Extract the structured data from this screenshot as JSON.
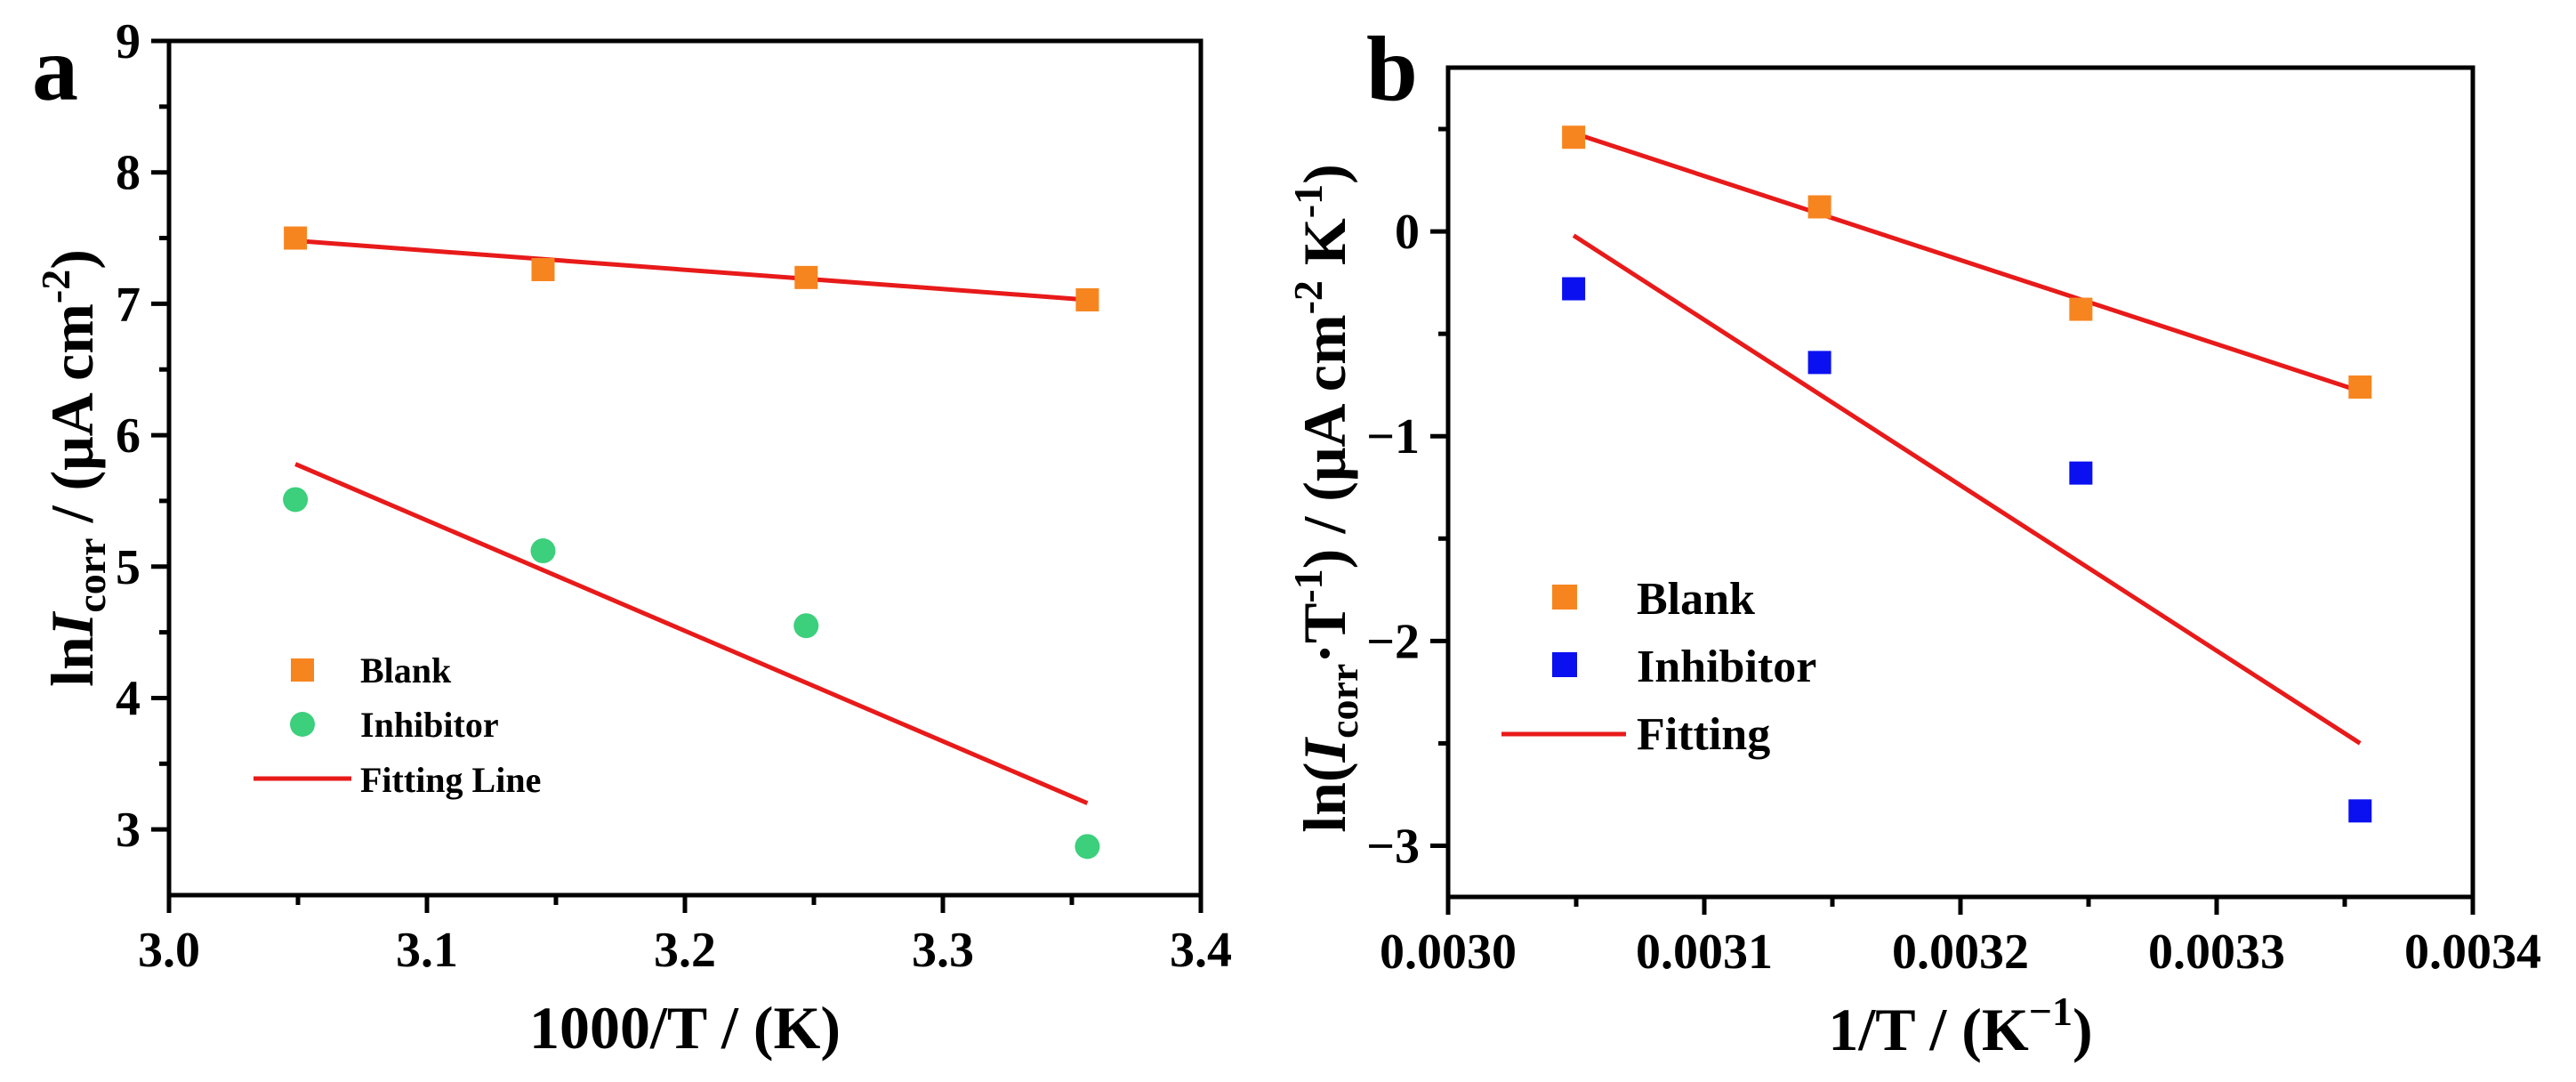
{
  "colors": {
    "blank": "#f7851f",
    "inhibitor_a": "#3ccf7c",
    "inhibitor_b": "#0b10f0",
    "fit": "#e81a1a",
    "axis": "#000000"
  },
  "chart_data": [
    {
      "panel": "a",
      "type": "scatter",
      "xlabel": "1000/T / (K)",
      "ylabel_parts": {
        "pre": "ln",
        "var": "I",
        "sub": "corr",
        "post": " / (μA cm",
        "sup": "-2",
        "end": ")"
      },
      "xlim": [
        3.0,
        3.4
      ],
      "ylim": [
        2.5,
        9.0
      ],
      "xticks": [
        "3.0",
        "3.1",
        "3.2",
        "3.3",
        "3.4"
      ],
      "yticks": [
        "3",
        "4",
        "5",
        "6",
        "7",
        "8",
        "9"
      ],
      "series": [
        {
          "name": "Blank",
          "marker": "square",
          "color": "#f7851f",
          "x": [
            3.049,
            3.145,
            3.247,
            3.356
          ],
          "y": [
            7.5,
            7.26,
            7.2,
            7.03
          ]
        },
        {
          "name": "Inhibitor",
          "marker": "circle",
          "color": "#3ccf7c",
          "x": [
            3.049,
            3.145,
            3.247,
            3.356
          ],
          "y": [
            5.51,
            5.12,
            4.55,
            2.87
          ]
        }
      ],
      "fits": [
        {
          "x": [
            3.049,
            3.356
          ],
          "y": [
            7.48,
            7.03
          ]
        },
        {
          "x": [
            3.049,
            3.356
          ],
          "y": [
            5.78,
            3.2
          ]
        }
      ],
      "legend": {
        "position": "lower-left",
        "items": [
          "Blank",
          "Inhibitor",
          "Fitting Line"
        ]
      }
    },
    {
      "panel": "b",
      "type": "scatter",
      "xlabel_parts": {
        "pre": "1/T / (K",
        "sup": "−1",
        "end": ")"
      },
      "ylabel_parts": {
        "pre": "ln(",
        "var": "I",
        "sub": "corr",
        "mid": "·T",
        "sup1": "-1",
        "post": ") / (μA cm",
        "sup2": "-2",
        "post2": " K",
        "sup3": "-1",
        "end": ")"
      },
      "xlim": [
        0.003,
        0.0034
      ],
      "ylim": [
        -3.25,
        0.8
      ],
      "xticks": [
        "0.0030",
        "0.0031",
        "0.0032",
        "0.0033",
        "0.0034"
      ],
      "yticks": [
        "−3",
        "−2",
        "−1",
        "0"
      ],
      "series": [
        {
          "name": "Blank",
          "marker": "square",
          "color": "#f7851f",
          "x": [
            0.003049,
            0.003145,
            0.003247,
            0.003356
          ],
          "y": [
            0.46,
            0.12,
            -0.38,
            -0.76
          ]
        },
        {
          "name": "Inhibitor",
          "marker": "square",
          "color": "#0b10f0",
          "x": [
            0.003049,
            0.003145,
            0.003247,
            0.003356
          ],
          "y": [
            -0.28,
            -0.64,
            -1.18,
            -2.83
          ]
        }
      ],
      "fits": [
        {
          "x": [
            0.003049,
            0.003356
          ],
          "y": [
            0.48,
            -0.78
          ]
        },
        {
          "x": [
            0.003049,
            0.003356
          ],
          "y": [
            -0.02,
            -2.5
          ]
        }
      ],
      "legend": {
        "position": "lower-left",
        "items": [
          "Blank",
          "Inhibitor",
          "Fitting"
        ]
      }
    }
  ]
}
